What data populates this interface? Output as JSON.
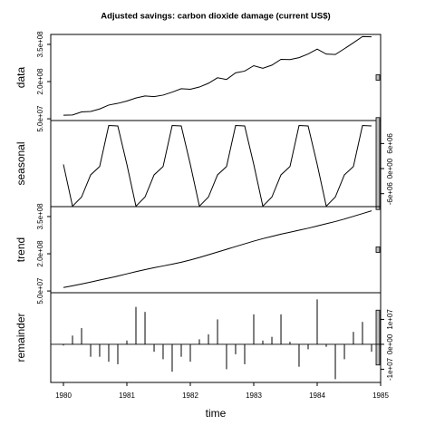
{
  "chart_data": {
    "type": "line",
    "title": "Adjusted savings: carbon dioxide damage (current US$)",
    "xlabel": "time",
    "x": [
      1980,
      1980.143,
      1980.286,
      1980.429,
      1980.571,
      1980.714,
      1980.857,
      1981,
      1981.143,
      1981.286,
      1981.429,
      1981.571,
      1981.714,
      1981.857,
      1982,
      1982.143,
      1982.286,
      1982.429,
      1982.571,
      1982.714,
      1982.857,
      1983,
      1983.143,
      1983.286,
      1983.429,
      1983.571,
      1983.714,
      1983.857,
      1984,
      1984.143,
      1984.286,
      1984.429,
      1984.571,
      1984.714,
      1984.857
    ],
    "xlim": [
      1979.8,
      1985.0
    ],
    "xticks": [
      1980,
      1981,
      1982,
      1983,
      1984,
      1985
    ],
    "scale_bar": 22000000,
    "series": [
      {
        "name": "data",
        "type": "line",
        "color": "#000000",
        "axis_side": "left",
        "ylim": [
          43000000,
          390000000
        ],
        "yticks": [
          {
            "value": 50000000,
            "label": "5.0e+07"
          },
          {
            "value": 200000000,
            "label": "2.0e+08"
          },
          {
            "value": 350000000,
            "label": "3.5e+08"
          }
        ],
        "values": [
          64500000.0,
          65500000.0,
          77700000.0,
          79500000.0,
          89500000.0,
          105300000.0,
          112200000.0,
          121500000.0,
          134000000.0,
          142200000.0,
          139500000.0,
          145500000.0,
          157300000.0,
          171200000.0,
          169000000.0,
          178000000.0,
          193200000.0,
          215500000.0,
          208500000.0,
          235300000.0,
          242200000.0,
          264000000.0,
          253500000.0,
          266200000.0,
          289500000.0,
          288500000.0,
          296300000.0,
          311200000.0,
          331000000.0,
          311000000.0,
          309200000.0,
          332500000.0,
          356500000.0,
          381300000.0,
          380200000.0
        ]
      },
      {
        "name": "seasonal",
        "type": "line",
        "color": "#000000",
        "axis_side": "right",
        "ylim": [
          -9100000,
          11500000
        ],
        "yticks": [
          {
            "value": -6000000,
            "label": "-6e+06"
          },
          {
            "value": 0,
            "label": "0e+00"
          },
          {
            "value": 6000000,
            "label": "6e+06"
          }
        ],
        "values": [
          1000000.0,
          -9000000.0,
          -6800000.0,
          -1500000.0,
          500000.0,
          10300000.0,
          10200000.0,
          1000000.0,
          -9000000.0,
          -6800000.0,
          -1500000.0,
          500000.0,
          10300000.0,
          10200000.0,
          1000000.0,
          -9000000.0,
          -6800000.0,
          -1500000.0,
          500000.0,
          10300000.0,
          10200000.0,
          1000000.0,
          -9000000.0,
          -6800000.0,
          -1500000.0,
          500000.0,
          10300000.0,
          10200000.0,
          1000000.0,
          -9000000.0,
          -6800000.0,
          -1500000.0,
          500000.0,
          10300000.0,
          10200000.0
        ]
      },
      {
        "name": "trend",
        "type": "line",
        "color": "#000000",
        "axis_side": "left",
        "ylim": [
          43000000,
          390000000
        ],
        "yticks": [
          {
            "value": 50000000,
            "label": "5.0e+07"
          },
          {
            "value": 200000000,
            "label": "2.0e+08"
          },
          {
            "value": 350000000,
            "label": "3.5e+08"
          }
        ],
        "values": [
          64000000.0,
          71000000.0,
          78000000.0,
          86000000.0,
          94000000.0,
          102000000.0,
          110000000.0,
          119000000.0,
          128000000.0,
          136000000.0,
          144000000.0,
          151000000.0,
          158000000.0,
          166000000.0,
          175000000.0,
          185000000.0,
          196000000.0,
          207000000.0,
          218000000.0,
          229000000.0,
          240000000.0,
          251000000.0,
          261000000.0,
          270000000.0,
          279000000.0,
          287000000.0,
          295000000.0,
          303000000.0,
          312000000.0,
          321000000.0,
          330000000.0,
          340000000.0,
          351000000.0,
          362000000.0,
          373000000.0
        ]
      },
      {
        "name": "remainder",
        "type": "bar",
        "color": "#000000",
        "axis_side": "right",
        "ylim": [
          -15300000,
          20700000
        ],
        "yticks": [
          {
            "value": -10000000,
            "label": "-1e+07"
          },
          {
            "value": 0,
            "label": "0e+00"
          },
          {
            "value": 10000000,
            "label": "1e+07"
          }
        ],
        "values": [
          -500000.0,
          3500000.0,
          6500000.0,
          -5000000.0,
          -5000000.0,
          -7000000.0,
          -8000000.0,
          1500000.0,
          15000000.0,
          13000000.0,
          -3000000.0,
          -6000000.0,
          -11000000.0,
          -5000000.0,
          -7000000.0,
          2000000.0,
          4000000.0,
          10000000.0,
          -10000000.0,
          -4000000.0,
          -8000000.0,
          12000000.0,
          1500000.0,
          3000000.0,
          12000000.0,
          1000000.0,
          -9000000.0,
          -2000000.0,
          18000000.0,
          -1000000.0,
          -14000000.0,
          -6000000.0,
          5000000.0,
          9000000.0,
          -3000000.0
        ]
      }
    ]
  }
}
